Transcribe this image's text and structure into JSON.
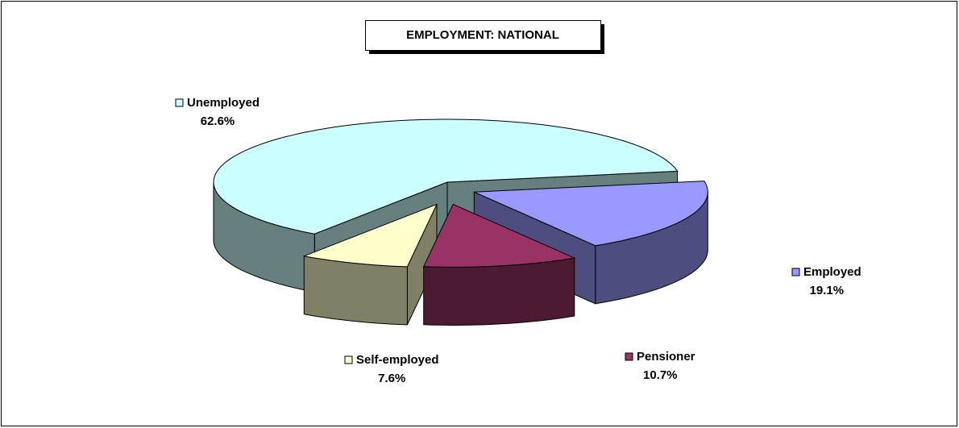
{
  "chart_data": {
    "type": "pie3d",
    "title": "EMPLOYMENT: NATIONAL",
    "categories": [
      "Unemployed",
      "Employed",
      "Pensioner",
      "Self-employed"
    ],
    "values": [
      62.6,
      19.1,
      10.7,
      7.6
    ],
    "value_labels": [
      "62.6%",
      "19.1%",
      "10.7%",
      "7.6%"
    ],
    "colors": [
      "#ccffff",
      "#9999ff",
      "#993366",
      "#ffffcc"
    ]
  }
}
